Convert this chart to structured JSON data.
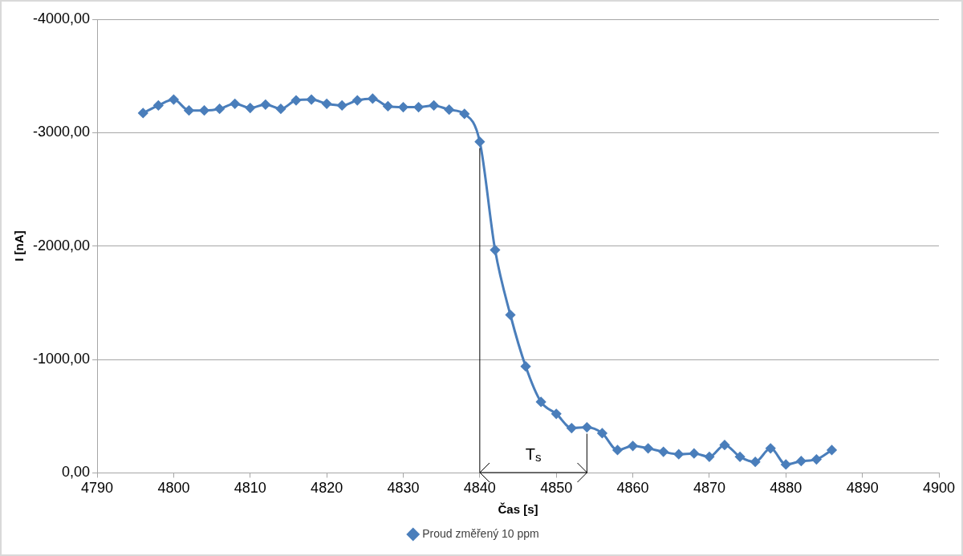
{
  "chart_data": {
    "type": "line",
    "xlabel": "Čas [s]",
    "ylabel": "I [nA]",
    "xlim": [
      4790,
      4900
    ],
    "xticks": [
      4790,
      4800,
      4810,
      4820,
      4830,
      4840,
      4850,
      4860,
      4870,
      4880,
      4890,
      4900
    ],
    "ylim": [
      0,
      -4000
    ],
    "yticks": [
      {
        "value": -4000,
        "label": "-4000,00"
      },
      {
        "value": -3000,
        "label": "-3000,00"
      },
      {
        "value": -2000,
        "label": "-2000,00"
      },
      {
        "value": -1000,
        "label": "-1000,00"
      },
      {
        "value": 0,
        "label": "0,00"
      }
    ],
    "grid": "y",
    "legend": "bottom",
    "marker": "diamond",
    "line_style": "solid",
    "series": [
      {
        "name": "Proud změřený 10 ppm",
        "color": "#4a7ebb",
        "x": [
          4796,
          4798,
          4800,
          4802,
          4804,
          4806,
          4808,
          4810,
          4812,
          4814,
          4816,
          4818,
          4820,
          4822,
          4824,
          4826,
          4828,
          4830,
          4832,
          4834,
          4836,
          4838,
          4840,
          4842,
          4844,
          4846,
          4848,
          4850,
          4852,
          4854,
          4856,
          4858,
          4860,
          4862,
          4864,
          4866,
          4868,
          4870,
          4872,
          4874,
          4876,
          4878,
          4880,
          4882,
          4884,
          4886
        ],
        "values": [
          -3173,
          -3240,
          -3292,
          -3196,
          -3196,
          -3210,
          -3255,
          -3218,
          -3248,
          -3210,
          -3285,
          -3292,
          -3255,
          -3240,
          -3285,
          -3300,
          -3233,
          -3225,
          -3225,
          -3240,
          -3203,
          -3166,
          -2920,
          -1966,
          -1393,
          -939,
          -626,
          -521,
          -395,
          -402,
          -350,
          -201,
          -238,
          -216,
          -186,
          -164,
          -171,
          -142,
          -246,
          -142,
          -97,
          -216,
          -74,
          -104,
          -119,
          -201
        ]
      }
    ],
    "ref_lines": [
      {
        "axis": "x",
        "value": 4840,
        "line_style": "solid",
        "color": "#000000"
      },
      {
        "axis": "x",
        "value": 4854,
        "line_style": "solid",
        "color": "#000000"
      }
    ],
    "annotations": [
      "T$_{s}$"
    ]
  }
}
